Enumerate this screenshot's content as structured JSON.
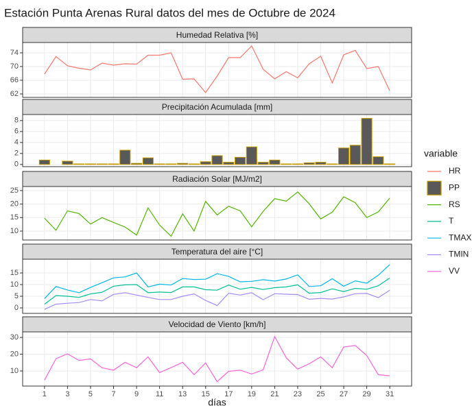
{
  "title": "Estación Punta Arenas Rural datos del mes de Octubre de 2024",
  "legend_title": "variable",
  "chart_data": [
    {
      "type": "line",
      "title": "Humedad Relativa [%]",
      "x": [
        1,
        2,
        3,
        4,
        5,
        6,
        7,
        8,
        9,
        10,
        11,
        12,
        13,
        14,
        15,
        16,
        17,
        18,
        19,
        20,
        21,
        22,
        23,
        24,
        25,
        26,
        27,
        28,
        29,
        30,
        31
      ],
      "xlim": [
        -0.9,
        32.9
      ],
      "xticks": [
        1,
        3,
        5,
        7,
        9,
        11,
        13,
        15,
        17,
        19,
        21,
        23,
        25,
        27,
        29,
        31
      ],
      "ylim": [
        61,
        77
      ],
      "yticks": [
        62,
        66,
        70,
        74
      ],
      "grid": true,
      "series": [
        {
          "name": "HR",
          "color": "#F8766D",
          "values": [
            67.8,
            72.9,
            70.2,
            69.5,
            69.0,
            71.0,
            70.4,
            70.8,
            70.7,
            73.3,
            73.3,
            74.0,
            66.3,
            66.4,
            62.4,
            67.2,
            72.6,
            72.6,
            76.0,
            69.2,
            66.4,
            68.5,
            66.7,
            70.8,
            73.0,
            65.2,
            73.4,
            74.7,
            69.4,
            70.0,
            62.9
          ]
        }
      ]
    },
    {
      "type": "bar",
      "title": "Precipitación Acumulada [mm]",
      "x": [
        1,
        2,
        3,
        4,
        5,
        6,
        7,
        8,
        9,
        10,
        11,
        12,
        13,
        14,
        15,
        16,
        17,
        18,
        19,
        20,
        21,
        22,
        23,
        24,
        25,
        26,
        27,
        28,
        29,
        30,
        31
      ],
      "xlim": [
        -0.9,
        32.9
      ],
      "xticks": [
        1,
        3,
        5,
        7,
        9,
        11,
        13,
        15,
        17,
        19,
        21,
        23,
        25,
        27,
        29,
        31
      ],
      "ylim": [
        -0.4,
        9.1
      ],
      "yticks": [
        0,
        2,
        4,
        6,
        8
      ],
      "grid": true,
      "series": [
        {
          "name": "PP",
          "color": "#C49A00",
          "fill": "#595959",
          "values": [
            0.8,
            0,
            0.6,
            0.1,
            0.1,
            0.1,
            0.1,
            2.6,
            0.2,
            1.2,
            0.1,
            0.1,
            0.2,
            0.1,
            0.5,
            1.6,
            0.4,
            1.3,
            3.2,
            0.4,
            0.8,
            0.1,
            0.1,
            0.3,
            0.4,
            0.1,
            3.0,
            3.5,
            8.4,
            1.4,
            0.1
          ]
        }
      ]
    },
    {
      "type": "line",
      "title": "Radiación Solar [MJ/m2]",
      "x": [
        1,
        2,
        3,
        4,
        5,
        6,
        7,
        8,
        9,
        10,
        11,
        12,
        13,
        14,
        15,
        16,
        17,
        18,
        19,
        20,
        21,
        22,
        23,
        24,
        25,
        26,
        27,
        28,
        29,
        30,
        31
      ],
      "xlim": [
        -0.9,
        32.9
      ],
      "xticks": [
        1,
        3,
        5,
        7,
        9,
        11,
        13,
        15,
        17,
        19,
        21,
        23,
        25,
        27,
        29,
        31
      ],
      "ylim": [
        6.7,
        26.5
      ],
      "yticks": [
        10,
        15,
        20,
        25
      ],
      "grid": true,
      "series": [
        {
          "name": "RS",
          "color": "#53B400",
          "values": [
            14.8,
            10.3,
            17.5,
            16.5,
            12.6,
            15.0,
            13.2,
            11.5,
            8.5,
            18.6,
            12.2,
            8.1,
            16.4,
            10.0,
            21.0,
            16.0,
            19.2,
            17.5,
            11.6,
            17.3,
            22.0,
            21.1,
            24.5,
            20.1,
            14.5,
            17.0,
            22.7,
            20.5,
            15.0,
            17.1,
            22.2
          ]
        }
      ]
    },
    {
      "type": "line",
      "title": "Temperatura del aire [°C]",
      "x": [
        1,
        2,
        3,
        4,
        5,
        6,
        7,
        8,
        9,
        10,
        11,
        12,
        13,
        14,
        15,
        16,
        17,
        18,
        19,
        20,
        21,
        22,
        23,
        24,
        25,
        26,
        27,
        28,
        29,
        30,
        31
      ],
      "xlim": [
        -0.9,
        32.9
      ],
      "xticks": [
        1,
        3,
        5,
        7,
        9,
        11,
        13,
        15,
        17,
        19,
        21,
        23,
        25,
        27,
        29,
        31
      ],
      "ylim": [
        -2.35,
        20.9
      ],
      "yticks": [
        0,
        5,
        10,
        15
      ],
      "grid": true,
      "series": [
        {
          "name": "T",
          "color": "#00C094",
          "values": [
            1.6,
            5.3,
            5.0,
            4.5,
            6.0,
            6.7,
            9.3,
            9.9,
            10.0,
            6.5,
            6.8,
            6.6,
            9.0,
            9.0,
            7.8,
            7.6,
            9.8,
            8.0,
            8.8,
            7.9,
            8.7,
            9.0,
            9.9,
            6.3,
            6.6,
            8.2,
            7.0,
            8.4,
            8.0,
            9.5,
            12.8
          ]
        },
        {
          "name": "TMAX",
          "color": "#00B6EB",
          "values": [
            4.0,
            9.2,
            7.7,
            6.5,
            8.8,
            10.8,
            12.9,
            13.3,
            15.0,
            9.0,
            10.2,
            9.8,
            12.6,
            12.2,
            12.3,
            14.7,
            13.5,
            11.2,
            11.4,
            12.1,
            11.5,
            12.4,
            14.2,
            9.2,
            9.5,
            12.5,
            9.3,
            11.6,
            10.6,
            14.0,
            18.6
          ]
        },
        {
          "name": "TMIN",
          "color": "#A58AFF",
          "values": [
            -0.6,
            1.6,
            2.0,
            2.3,
            3.6,
            3.0,
            5.8,
            6.5,
            5.5,
            4.5,
            3.6,
            3.6,
            5.0,
            6.0,
            3.2,
            1.0,
            6.3,
            5.5,
            6.5,
            3.5,
            6.1,
            5.9,
            5.7,
            3.7,
            4.1,
            3.8,
            4.7,
            6.1,
            6.2,
            4.4,
            7.6
          ]
        }
      ]
    },
    {
      "type": "line",
      "title": "Velocidad de Viento [km/h]",
      "xlabel": "días",
      "x": [
        1,
        2,
        3,
        4,
        5,
        6,
        7,
        8,
        9,
        10,
        11,
        12,
        13,
        14,
        15,
        16,
        17,
        18,
        19,
        20,
        21,
        22,
        23,
        24,
        25,
        26,
        27,
        28,
        29,
        30,
        31
      ],
      "xlim": [
        -0.9,
        32.9
      ],
      "xticks": [
        1,
        3,
        5,
        7,
        9,
        11,
        13,
        15,
        17,
        19,
        21,
        23,
        25,
        27,
        29,
        31
      ],
      "ylim": [
        1,
        33.3
      ],
      "yticks": [
        10,
        20,
        30
      ],
      "grid": true,
      "series": [
        {
          "name": "VV",
          "color": "#FB61D7",
          "values": [
            4.5,
            17.3,
            20.2,
            16.3,
            17.2,
            11.9,
            10.5,
            15.2,
            11.9,
            18.4,
            9.0,
            12.0,
            15.2,
            7.8,
            14.8,
            3.6,
            9.8,
            10.5,
            8.2,
            10.7,
            30.5,
            17.9,
            11.1,
            14.3,
            18.4,
            11.9,
            24.3,
            25.2,
            19.2,
            7.8,
            7.1
          ]
        }
      ]
    }
  ]
}
